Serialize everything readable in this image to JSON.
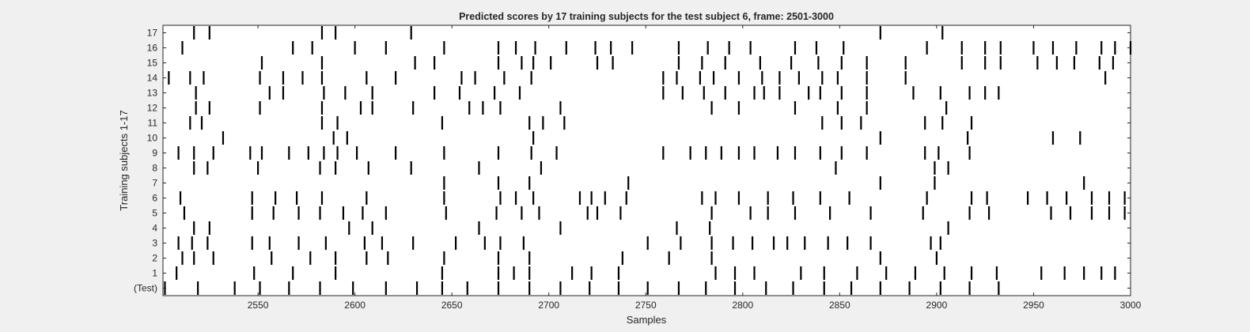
{
  "chart_data": {
    "type": "raster",
    "title": "Predicted scores by 17 training subjects for the test subject 6, frame: 2501-3000",
    "xlabel": "Samples",
    "ylabel": "Training subjects 1-17",
    "xlim": [
      2501,
      3000
    ],
    "xticks": [
      2550,
      2600,
      2650,
      2700,
      2750,
      2800,
      2850,
      2900,
      2950,
      3000
    ],
    "ytick_labels": [
      "(Test)",
      "1",
      "2",
      "3",
      "4",
      "5",
      "6",
      "7",
      "8",
      "9",
      "10",
      "11",
      "12",
      "13",
      "14",
      "15",
      "16",
      "17"
    ],
    "grid": false,
    "colors": {
      "background": "#f0f0f0",
      "plot": "#ffffff",
      "event": "#000000",
      "axis": "#262626"
    },
    "rows": [
      {
        "label": "(Test)",
        "events": [
          2502,
          2519,
          2538,
          2551,
          2566,
          2582,
          2599,
          2616,
          2632,
          2645,
          2658,
          2674,
          2690,
          2706,
          2721,
          2736,
          2751,
          2767,
          2781,
          2796,
          2812,
          2826,
          2842,
          2856,
          2871,
          2886,
          2902,
          2917,
          2932
        ]
      },
      {
        "label": "1",
        "events": [
          2508,
          2548,
          2568,
          2590,
          2645,
          2674,
          2682,
          2690,
          2712,
          2722,
          2736,
          2786,
          2796,
          2806,
          2830,
          2842,
          2859,
          2874,
          2889,
          2904,
          2918,
          2931,
          2954,
          2966,
          2976,
          2985,
          2992
        ]
      },
      {
        "label": "2",
        "events": [
          2511,
          2517,
          2527,
          2557,
          2577,
          2590,
          2606,
          2617,
          2646,
          2674,
          2690,
          2738,
          2762,
          2784,
          2871,
          2900
        ]
      },
      {
        "label": "3",
        "events": [
          2509,
          2516,
          2524,
          2547,
          2556,
          2571,
          2585,
          2605,
          2614,
          2630,
          2652,
          2667,
          2675,
          2687,
          2751,
          2768,
          2784,
          2795,
          2805,
          2816,
          2823,
          2832,
          2844,
          2854,
          2866,
          2897,
          2902
        ]
      },
      {
        "label": "4",
        "events": [
          2517,
          2525,
          2597,
          2609,
          2664,
          2706,
          2766,
          2783,
          2906
        ]
      },
      {
        "label": "5",
        "events": [
          2512,
          2547,
          2558,
          2571,
          2582,
          2594,
          2604,
          2616,
          2647,
          2673,
          2686,
          2695,
          2720,
          2725,
          2737,
          2784,
          2804,
          2813,
          2827,
          2845,
          2866,
          2893,
          2917,
          2927,
          2959,
          2969,
          2980,
          2989,
          2997
        ]
      },
      {
        "label": "6",
        "events": [
          2510,
          2547,
          2559,
          2570,
          2583,
          2606,
          2646,
          2675,
          2683,
          2692,
          2716,
          2722,
          2729,
          2740,
          2779,
          2786,
          2798,
          2813,
          2826,
          2840,
          2855,
          2895,
          2918,
          2926,
          2947,
          2957,
          2967,
          2980,
          2989,
          2997
        ]
      },
      {
        "label": "7",
        "events": [
          2646,
          2674,
          2690,
          2741,
          2871,
          2899,
          2976
        ]
      },
      {
        "label": "8",
        "events": [
          2517,
          2524,
          2550,
          2582,
          2590,
          2607,
          2629,
          2664,
          2696,
          2848,
          2899,
          2906
        ]
      },
      {
        "label": "9",
        "events": [
          2509,
          2517,
          2527,
          2546,
          2552,
          2566,
          2576,
          2584,
          2591,
          2601,
          2621,
          2646,
          2674,
          2691,
          2704,
          2759,
          2773,
          2781,
          2789,
          2798,
          2806,
          2818,
          2827,
          2840,
          2851,
          2864,
          2894,
          2901,
          2917
        ]
      },
      {
        "label": "10",
        "events": [
          2532,
          2589,
          2596,
          2692,
          2871,
          2916,
          2960,
          2974
        ]
      },
      {
        "label": "11",
        "events": [
          2515,
          2521,
          2583,
          2591,
          2645,
          2690,
          2697,
          2708,
          2841,
          2851,
          2861,
          2894,
          2903,
          2918
        ]
      },
      {
        "label": "12",
        "events": [
          2518,
          2525,
          2551,
          2583,
          2603,
          2609,
          2630,
          2659,
          2666,
          2675,
          2706,
          2784,
          2798,
          2827,
          2849,
          2864,
          2905
        ]
      },
      {
        "label": "13",
        "events": [
          2518,
          2556,
          2563,
          2584,
          2595,
          2609,
          2641,
          2654,
          2672,
          2685,
          2759,
          2769,
          2780,
          2791,
          2806,
          2811,
          2819,
          2834,
          2840,
          2851,
          2864,
          2888,
          2902,
          2917,
          2925,
          2932
        ]
      },
      {
        "label": "14",
        "events": [
          2504,
          2515,
          2522,
          2551,
          2563,
          2573,
          2583,
          2606,
          2621,
          2655,
          2662,
          2677,
          2691,
          2759,
          2766,
          2778,
          2785,
          2798,
          2810,
          2819,
          2829,
          2841,
          2849,
          2864,
          2884,
          2987
        ]
      },
      {
        "label": "15",
        "events": [
          2552,
          2583,
          2631,
          2641,
          2674,
          2686,
          2692,
          2701,
          2725,
          2733,
          2767,
          2779,
          2791,
          2809,
          2825,
          2839,
          2851,
          2864,
          2884,
          2913,
          2925,
          2933,
          2952,
          2962,
          2971,
          2984,
          2991
        ]
      },
      {
        "label": "16",
        "events": [
          2511,
          2568,
          2578,
          2600,
          2616,
          2646,
          2674,
          2683,
          2693,
          2709,
          2724,
          2732,
          2743,
          2767,
          2782,
          2793,
          2804,
          2827,
          2838,
          2852,
          2895,
          2913,
          2925,
          2933,
          2950,
          2960,
          2972,
          2985,
          2992,
          3000
        ]
      },
      {
        "label": "17",
        "events": [
          2517,
          2525,
          2583,
          2590,
          2629,
          2871,
          2903
        ]
      }
    ]
  }
}
